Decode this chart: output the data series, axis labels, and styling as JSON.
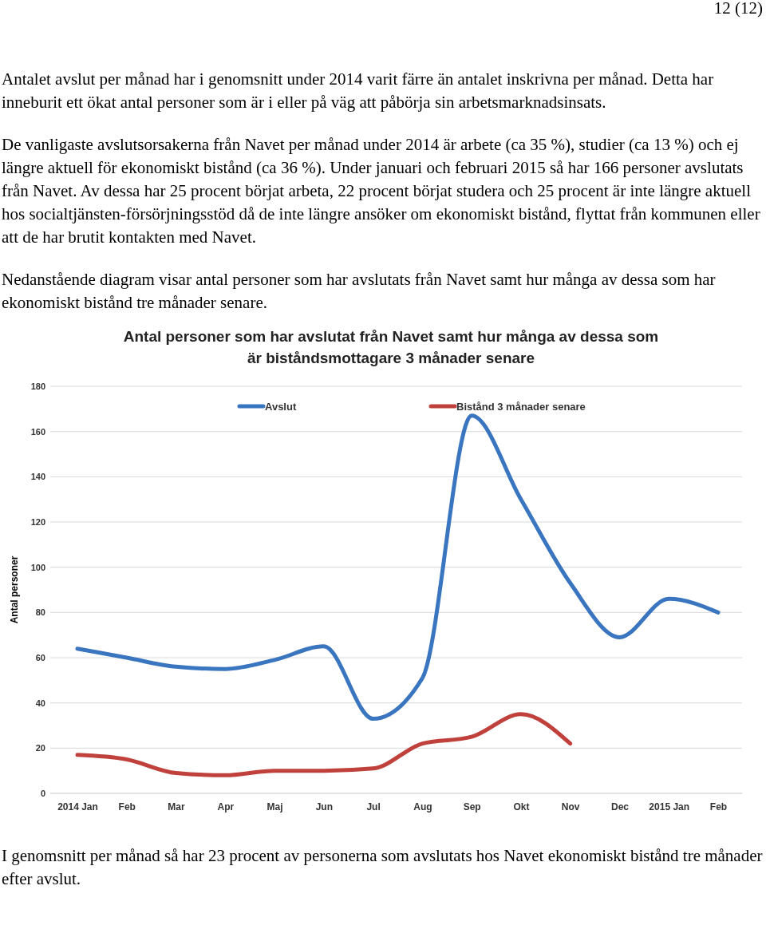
{
  "chart_data": {
    "type": "line",
    "title": "Antal personer som har avslutat från Navet samt hur många av dessa som är biståndsmottagare 3 månader senare",
    "ylabel": "Antal personer",
    "annotations": [
      "12 (12)",
      "Antalet avslut per månad har i genomsnitt under 2014 varit färre än antalet inskrivna per månad. Detta har inneburit ett ökat antal personer som är i eller på väg att påbörja sin arbetsmarknadsinsats.",
      "De vanligaste avslutsorsakerna från Navet per månad under 2014 är arbete (ca 35 %), studier (ca 13 %) och ej längre aktuell för ekonomiskt bistånd (ca 36 %). Under januari och februari 2015 så har 166 personer avslutats från Navet. Av dessa har 25 procent börjat arbeta, 22 procent börjat studera och 25 procent är inte längre aktuell hos socialtjänsten-försörjningsstöd då de inte längre ansöker om ekonomiskt bistånd, flyttat från kommunen eller att de har brutit kontakten med Navet.",
      "Nedanstående diagram visar antal personer som har avslutats från Navet samt hur många av dessa som har ekonomiskt bistånd tre månader senare.",
      "I genomsnitt per månad så har 23 procent av personerna som avslutats hos Navet ekonomiskt bistånd tre månader efter avslut."
    ],
    "categories": [
      "2014 Jan",
      "Feb",
      "Mar",
      "Apr",
      "Maj",
      "Jun",
      "Jul",
      "Aug",
      "Sep",
      "Okt",
      "Nov",
      "Dec",
      "2015 Jan",
      "Feb"
    ],
    "series": [
      {
        "name": "Avslut",
        "color": "#3a75bf",
        "values": [
          64,
          60,
          56,
          55,
          59,
          65,
          33,
          51,
          167,
          130,
          93,
          69,
          86,
          80
        ]
      },
      {
        "name": "Bistånd 3 månader senare",
        "color": "#c0403c",
        "values": [
          17,
          15,
          9,
          8,
          10,
          10,
          11,
          22,
          25,
          35,
          22,
          null,
          null,
          null
        ]
      }
    ],
    "ylim": [
      0,
      180
    ],
    "yticks": [
      0,
      20,
      40,
      60,
      80,
      100,
      120,
      140,
      160,
      180
    ],
    "grid": "y",
    "legend": "top",
    "marker": "none",
    "line_style": "solid"
  }
}
